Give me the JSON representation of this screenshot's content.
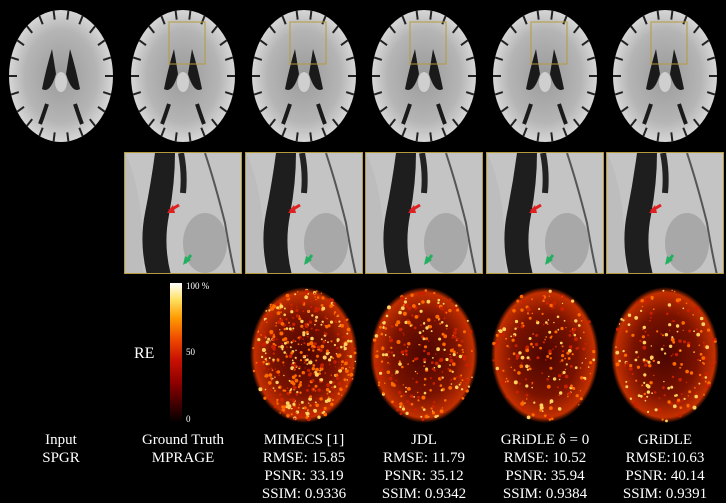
{
  "columns": [
    {
      "id": "input",
      "line1": "Input",
      "line2": "SPGR",
      "line3": "",
      "line4": ""
    },
    {
      "id": "gt",
      "line1": "Ground Truth",
      "line2": "MPRAGE",
      "line3": "",
      "line4": ""
    },
    {
      "id": "mimecs",
      "line1": "MIMECS [1]",
      "line2": "RMSE: 15.85",
      "line3": "PSNR: 33.19",
      "line4": "SSIM: 0.9336"
    },
    {
      "id": "jdl",
      "line1": "JDL",
      "line2": "RMSE: 11.79",
      "line3": "PSNR: 35.12",
      "line4": "SSIM: 0.9342"
    },
    {
      "id": "gridle0",
      "line1": "GRiDLE δ = 0",
      "line2": "RMSE: 10.52",
      "line3": "PSNR: 35.94",
      "line4": "SSIM: 0.9384"
    },
    {
      "id": "gridle",
      "line1": "GRiDLE",
      "line2": "RMSE:10.63",
      "line3": "PSNR: 40.14",
      "line4": "SSIM: 0.9391"
    }
  ],
  "colorbar": {
    "label": "RE",
    "tick_top": "100 %",
    "tick_mid": "50",
    "tick_bottom": "0"
  },
  "colors": {
    "roi_box": "#b59a3c",
    "arrow_red": "#e02020",
    "arrow_green": "#20b060"
  }
}
